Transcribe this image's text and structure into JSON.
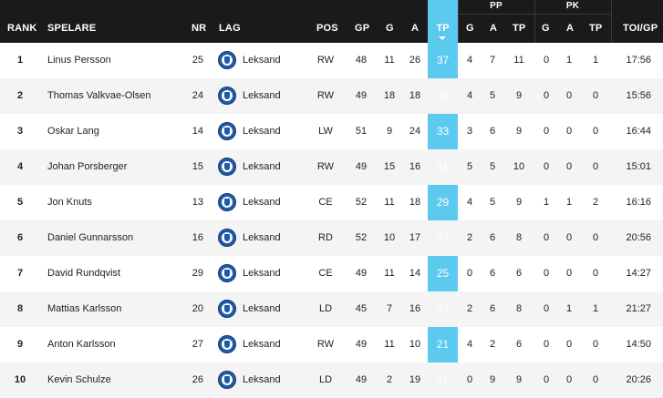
{
  "header": {
    "groups": {
      "pp": "PP",
      "pk": "PK"
    },
    "columns": {
      "rank": "RANK",
      "player": "SPELARE",
      "nr": "NR",
      "team": "LAG",
      "pos": "POS",
      "gp": "GP",
      "g": "G",
      "a": "A",
      "tp": "TP",
      "pp_g": "G",
      "pp_a": "A",
      "pp_tp": "TP",
      "pk_g": "G",
      "pk_a": "A",
      "pk_tp": "TP",
      "toi": "TOI/GP"
    }
  },
  "colors": {
    "header_bg": "#1a1a1a",
    "tp_highlight": "#5cc9ef",
    "team_logo": "#1f5aa8"
  },
  "rows": [
    {
      "rank": "1",
      "name": "Linus Persson",
      "nr": "25",
      "team": "Leksand",
      "pos": "RW",
      "gp": "48",
      "g": "11",
      "a": "26",
      "tp": "37",
      "pp_g": "4",
      "pp_a": "7",
      "pp_tp": "11",
      "pk_g": "0",
      "pk_a": "1",
      "pk_tp": "1",
      "toi": "17:56"
    },
    {
      "rank": "2",
      "name": "Thomas Valkvae-Olsen",
      "nr": "24",
      "team": "Leksand",
      "pos": "RW",
      "gp": "49",
      "g": "18",
      "a": "18",
      "tp": "36",
      "pp_g": "4",
      "pp_a": "5",
      "pp_tp": "9",
      "pk_g": "0",
      "pk_a": "0",
      "pk_tp": "0",
      "toi": "15:56"
    },
    {
      "rank": "3",
      "name": "Oskar Lang",
      "nr": "14",
      "team": "Leksand",
      "pos": "LW",
      "gp": "51",
      "g": "9",
      "a": "24",
      "tp": "33",
      "pp_g": "3",
      "pp_a": "6",
      "pp_tp": "9",
      "pk_g": "0",
      "pk_a": "0",
      "pk_tp": "0",
      "toi": "16:44"
    },
    {
      "rank": "4",
      "name": "Johan Porsberger",
      "nr": "15",
      "team": "Leksand",
      "pos": "RW",
      "gp": "49",
      "g": "15",
      "a": "16",
      "tp": "31",
      "pp_g": "5",
      "pp_a": "5",
      "pp_tp": "10",
      "pk_g": "0",
      "pk_a": "0",
      "pk_tp": "0",
      "toi": "15:01"
    },
    {
      "rank": "5",
      "name": "Jon Knuts",
      "nr": "13",
      "team": "Leksand",
      "pos": "CE",
      "gp": "52",
      "g": "11",
      "a": "18",
      "tp": "29",
      "pp_g": "4",
      "pp_a": "5",
      "pp_tp": "9",
      "pk_g": "1",
      "pk_a": "1",
      "pk_tp": "2",
      "toi": "16:16"
    },
    {
      "rank": "6",
      "name": "Daniel Gunnarsson",
      "nr": "16",
      "team": "Leksand",
      "pos": "RD",
      "gp": "52",
      "g": "10",
      "a": "17",
      "tp": "27",
      "pp_g": "2",
      "pp_a": "6",
      "pp_tp": "8",
      "pk_g": "0",
      "pk_a": "0",
      "pk_tp": "0",
      "toi": "20:56"
    },
    {
      "rank": "7",
      "name": "David Rundqvist",
      "nr": "29",
      "team": "Leksand",
      "pos": "CE",
      "gp": "49",
      "g": "11",
      "a": "14",
      "tp": "25",
      "pp_g": "0",
      "pp_a": "6",
      "pp_tp": "6",
      "pk_g": "0",
      "pk_a": "0",
      "pk_tp": "0",
      "toi": "14:27"
    },
    {
      "rank": "8",
      "name": "Mattias Karlsson",
      "nr": "20",
      "team": "Leksand",
      "pos": "LD",
      "gp": "45",
      "g": "7",
      "a": "16",
      "tp": "23",
      "pp_g": "2",
      "pp_a": "6",
      "pp_tp": "8",
      "pk_g": "0",
      "pk_a": "1",
      "pk_tp": "1",
      "toi": "21:27"
    },
    {
      "rank": "9",
      "name": "Anton Karlsson",
      "nr": "27",
      "team": "Leksand",
      "pos": "RW",
      "gp": "49",
      "g": "11",
      "a": "10",
      "tp": "21",
      "pp_g": "4",
      "pp_a": "2",
      "pp_tp": "6",
      "pk_g": "0",
      "pk_a": "0",
      "pk_tp": "0",
      "toi": "14:50"
    },
    {
      "rank": "10",
      "name": "Kevin Schulze",
      "nr": "26",
      "team": "Leksand",
      "pos": "LD",
      "gp": "49",
      "g": "2",
      "a": "19",
      "tp": "21",
      "pp_g": "0",
      "pp_a": "9",
      "pp_tp": "9",
      "pk_g": "0",
      "pk_a": "0",
      "pk_tp": "0",
      "toi": "20:26"
    }
  ]
}
